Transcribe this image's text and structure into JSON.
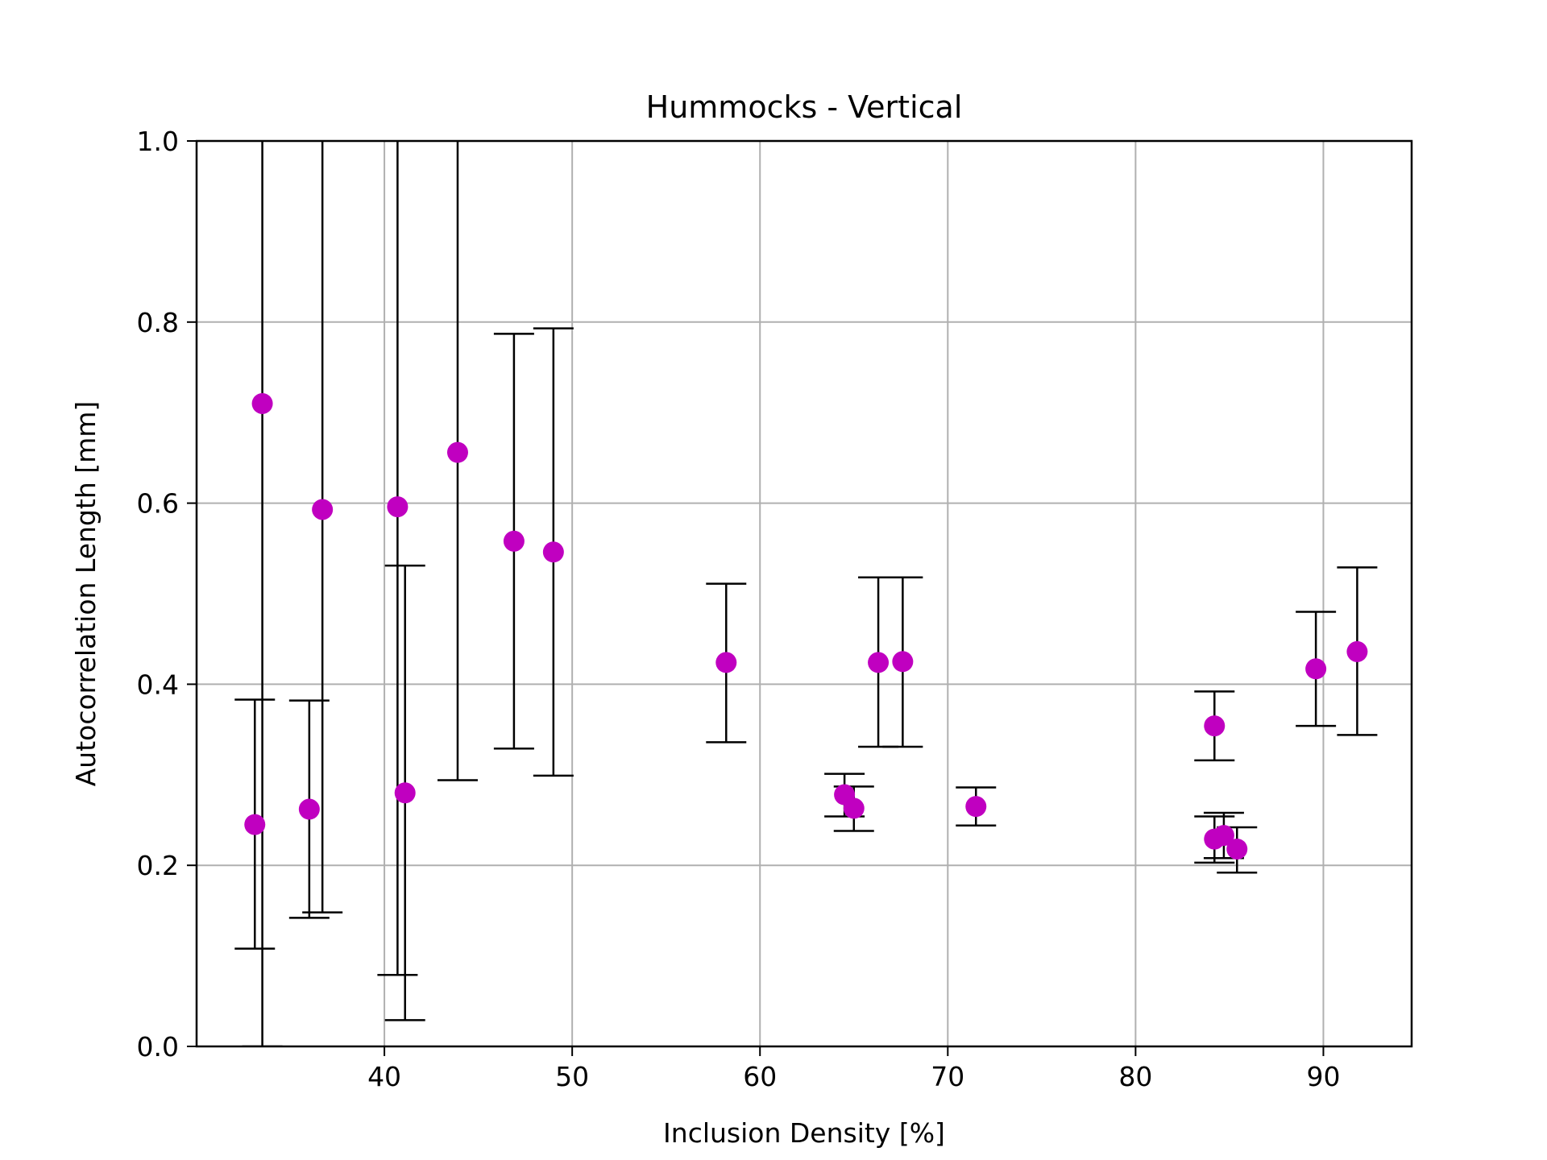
{
  "chart_data": {
    "type": "scatter",
    "title": "Hummocks - Vertical",
    "xlabel": "Inclusion Density [%]",
    "ylabel": "Autocorrelation Length [mm]",
    "xlim": [
      30,
      94.7
    ],
    "ylim": [
      0,
      1.0
    ],
    "xticks": [
      40,
      50,
      60,
      70,
      80,
      90
    ],
    "xtick_labels": [
      "40",
      "50",
      "60",
      "70",
      "80",
      "90"
    ],
    "yticks": [
      0.0,
      0.2,
      0.4,
      0.6,
      0.8,
      1.0
    ],
    "ytick_labels": [
      "0.0",
      "0.2",
      "0.4",
      "0.6",
      "0.8",
      "1.0"
    ],
    "grid": true,
    "marker_color": "#c000c0",
    "errorbar_color": "#000000",
    "grid_color": "#b0b0b0",
    "points": [
      {
        "x": 33.1,
        "y": 0.245,
        "ylow": 0.108,
        "yhigh": 0.383
      },
      {
        "x": 33.5,
        "y": 0.71,
        "ylow": 0.0,
        "yhigh": 1.42
      },
      {
        "x": 36.0,
        "y": 0.262,
        "ylow": 0.142,
        "yhigh": 0.382
      },
      {
        "x": 36.7,
        "y": 0.593,
        "ylow": 0.148,
        "yhigh": 1.04
      },
      {
        "x": 40.7,
        "y": 0.596,
        "ylow": 0.079,
        "yhigh": 1.11
      },
      {
        "x": 41.1,
        "y": 0.28,
        "ylow": 0.029,
        "yhigh": 0.531
      },
      {
        "x": 43.9,
        "y": 0.656,
        "ylow": 0.294,
        "yhigh": 1.02
      },
      {
        "x": 46.9,
        "y": 0.558,
        "ylow": 0.329,
        "yhigh": 0.787
      },
      {
        "x": 49.0,
        "y": 0.546,
        "ylow": 0.299,
        "yhigh": 0.793
      },
      {
        "x": 58.2,
        "y": 0.424,
        "ylow": 0.336,
        "yhigh": 0.511
      },
      {
        "x": 64.5,
        "y": 0.278,
        "ylow": 0.254,
        "yhigh": 0.301
      },
      {
        "x": 65.0,
        "y": 0.263,
        "ylow": 0.238,
        "yhigh": 0.287
      },
      {
        "x": 66.3,
        "y": 0.424,
        "ylow": 0.331,
        "yhigh": 0.518
      },
      {
        "x": 67.6,
        "y": 0.425,
        "ylow": 0.331,
        "yhigh": 0.518
      },
      {
        "x": 71.5,
        "y": 0.265,
        "ylow": 0.244,
        "yhigh": 0.286
      },
      {
        "x": 84.2,
        "y": 0.229,
        "ylow": 0.203,
        "yhigh": 0.254
      },
      {
        "x": 84.2,
        "y": 0.354,
        "ylow": 0.316,
        "yhigh": 0.392
      },
      {
        "x": 84.7,
        "y": 0.233,
        "ylow": 0.208,
        "yhigh": 0.258
      },
      {
        "x": 85.4,
        "y": 0.218,
        "ylow": 0.192,
        "yhigh": 0.242
      },
      {
        "x": 89.6,
        "y": 0.417,
        "ylow": 0.354,
        "yhigh": 0.48
      },
      {
        "x": 91.8,
        "y": 0.436,
        "ylow": 0.344,
        "yhigh": 0.529
      }
    ]
  }
}
